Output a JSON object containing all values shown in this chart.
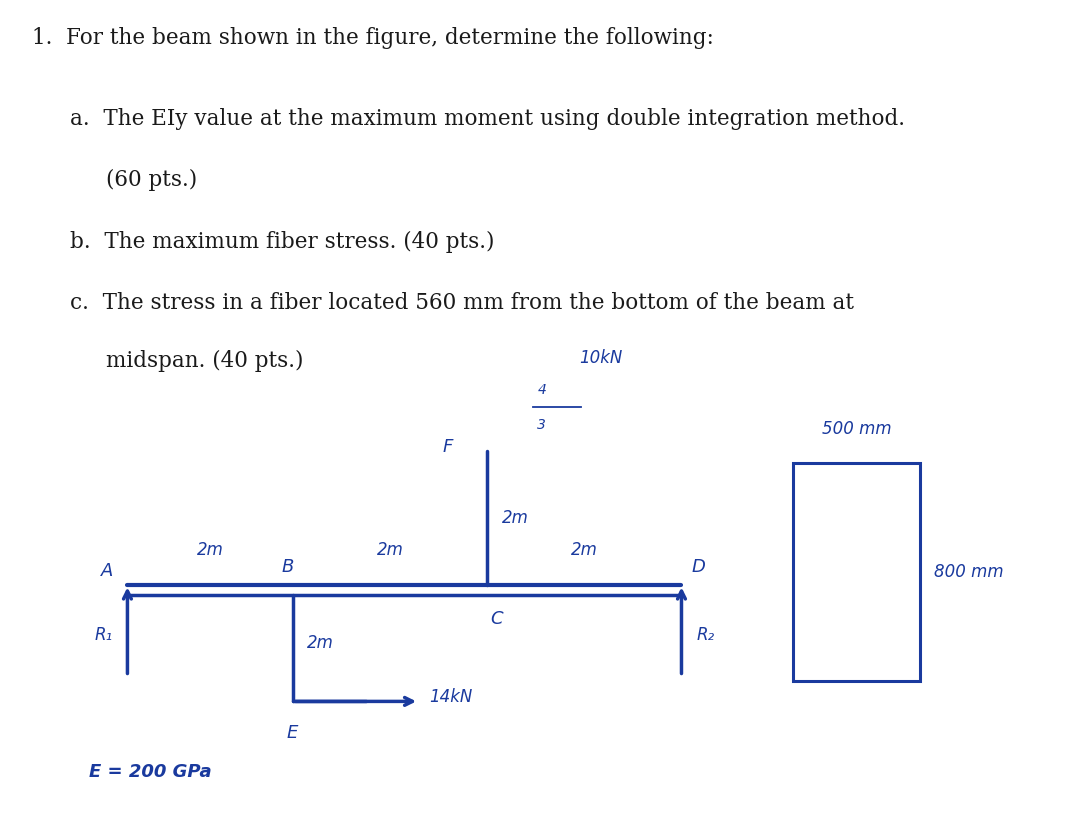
{
  "bg_color": "#ffffff",
  "diagram_bg": "#cdc8bc",
  "text_color": "#1a1a1a",
  "blue_color": "#1a3a9e",
  "title": "1.  For the beam shown in the figure, determine the following:",
  "line_a1": "a.  The EIy value at the maximum moment using double integration method.",
  "line_a2": "        (60 pts.)",
  "line_b": "b.  The maximum fiber stress. (40 pts.)",
  "line_c1": "c.  The stress in a fiber located 560 mm from the bottom of the beam at",
  "line_c2": "        midspan. (40 pts.)",
  "text_font_size": 15.5,
  "diag_font_size": 12,
  "beam_lw": 2.5
}
